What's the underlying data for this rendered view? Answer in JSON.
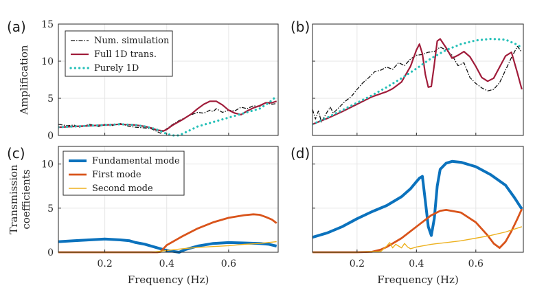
{
  "chart_data": [
    {
      "panel_label": "(a)",
      "type": "line",
      "ylabel": "Amplification",
      "xlabel": "",
      "xlim": [
        0.05,
        0.76
      ],
      "ylim": [
        0,
        15
      ],
      "xticks": [
        0.2,
        0.4,
        0.6
      ],
      "xticklabels": [],
      "yticks": [
        0,
        5,
        10,
        15
      ],
      "yticklabels": [
        "0",
        "5",
        "10",
        "15"
      ],
      "grid": true,
      "legend_position": "top-left",
      "series": [
        {
          "name": "Num. simulation",
          "color": "#111111",
          "style": "dashdot",
          "width": 1.3,
          "x": [
            0.05,
            0.08,
            0.1,
            0.12,
            0.15,
            0.18,
            0.2,
            0.22,
            0.25,
            0.28,
            0.3,
            0.33,
            0.35,
            0.37,
            0.38,
            0.39,
            0.4,
            0.42,
            0.44,
            0.46,
            0.48,
            0.5,
            0.52,
            0.54,
            0.55,
            0.56,
            0.58,
            0.6,
            0.62,
            0.64,
            0.66,
            0.68,
            0.7,
            0.72,
            0.74,
            0.755
          ],
          "y": [
            1.5,
            1.3,
            1.4,
            1.1,
            1.5,
            1.2,
            1.5,
            1.3,
            1.6,
            1.2,
            1.1,
            1.0,
            0.9,
            0.5,
            0.3,
            0.6,
            0.9,
            1.5,
            2.0,
            2.4,
            2.8,
            3.1,
            3.0,
            3.4,
            3.2,
            3.6,
            3.1,
            3.4,
            3.3,
            3.8,
            3.6,
            4.0,
            3.9,
            4.4,
            4.2,
            4.3
          ]
        },
        {
          "name": "Full 1D trans.",
          "color": "#a01c3a",
          "style": "solid",
          "width": 2.2,
          "x": [
            0.05,
            0.1,
            0.15,
            0.2,
            0.25,
            0.3,
            0.33,
            0.35,
            0.37,
            0.39,
            0.4,
            0.42,
            0.45,
            0.48,
            0.5,
            0.52,
            0.54,
            0.56,
            0.58,
            0.6,
            0.62,
            0.64,
            0.66,
            0.68,
            0.7,
            0.72,
            0.74,
            0.755
          ],
          "y": [
            1.1,
            1.2,
            1.3,
            1.4,
            1.5,
            1.4,
            1.2,
            1.0,
            0.7,
            0.6,
            0.8,
            1.4,
            2.1,
            2.9,
            3.6,
            4.2,
            4.6,
            4.6,
            4.1,
            3.4,
            3.0,
            2.8,
            3.3,
            3.7,
            4.0,
            4.4,
            4.4,
            4.6
          ]
        },
        {
          "name": "Purely 1D",
          "color": "#26c0b8",
          "style": "dotted",
          "width": 3.2,
          "x": [
            0.05,
            0.1,
            0.15,
            0.2,
            0.25,
            0.3,
            0.33,
            0.36,
            0.38,
            0.4,
            0.42,
            0.44,
            0.46,
            0.48,
            0.5,
            0.55,
            0.6,
            0.65,
            0.7,
            0.73,
            0.755
          ],
          "y": [
            1.1,
            1.2,
            1.3,
            1.4,
            1.5,
            1.4,
            1.2,
            0.9,
            0.6,
            0.2,
            0.0,
            0.0,
            0.4,
            0.8,
            1.2,
            1.8,
            2.4,
            3.0,
            3.6,
            4.4,
            5.3
          ]
        }
      ]
    },
    {
      "panel_label": "(b)",
      "type": "line",
      "ylabel": "",
      "xlabel": "",
      "xlim": [
        0.05,
        0.76
      ],
      "ylim": [
        0,
        15
      ],
      "xticks": [
        0.2,
        0.4,
        0.6
      ],
      "xticklabels": [],
      "yticks": [
        0,
        5,
        10,
        15
      ],
      "yticklabels": [],
      "grid": true,
      "series": [
        {
          "name": "Num. simulation",
          "color": "#111111",
          "style": "dashdot",
          "width": 1.3,
          "x": [
            0.05,
            0.06,
            0.07,
            0.08,
            0.09,
            0.1,
            0.11,
            0.12,
            0.14,
            0.16,
            0.18,
            0.2,
            0.22,
            0.24,
            0.26,
            0.28,
            0.3,
            0.32,
            0.34,
            0.36,
            0.38,
            0.4,
            0.42,
            0.44,
            0.46,
            0.48,
            0.5,
            0.52,
            0.54,
            0.56,
            0.58,
            0.6,
            0.62,
            0.64,
            0.66,
            0.68,
            0.7,
            0.72,
            0.74,
            0.755
          ],
          "y": [
            3.5,
            2.2,
            3.3,
            1.8,
            2.5,
            3.2,
            3.8,
            3.0,
            3.8,
            4.6,
            5.2,
            6.2,
            7.1,
            7.8,
            8.6,
            8.8,
            9.2,
            8.9,
            9.8,
            9.4,
            10.3,
            10.8,
            10.9,
            11.2,
            11.3,
            11.9,
            11.5,
            10.8,
            9.4,
            9.8,
            7.8,
            7.0,
            6.4,
            6.0,
            6.2,
            7.1,
            8.8,
            10.5,
            12.0,
            11.2
          ]
        },
        {
          "name": "Full 1D trans.",
          "color": "#a01c3a",
          "style": "solid",
          "width": 2.2,
          "x": [
            0.05,
            0.1,
            0.15,
            0.2,
            0.25,
            0.3,
            0.32,
            0.35,
            0.38,
            0.4,
            0.41,
            0.42,
            0.43,
            0.44,
            0.45,
            0.46,
            0.47,
            0.48,
            0.5,
            0.52,
            0.54,
            0.56,
            0.58,
            0.6,
            0.62,
            0.64,
            0.66,
            0.68,
            0.7,
            0.72,
            0.74,
            0.755
          ],
          "y": [
            1.5,
            2.3,
            3.2,
            4.2,
            5.2,
            5.9,
            6.3,
            7.2,
            9.3,
            11.5,
            12.3,
            11.0,
            8.2,
            6.5,
            6.6,
            9.5,
            12.7,
            13.0,
            11.8,
            10.4,
            10.8,
            11.3,
            10.6,
            9.3,
            7.8,
            7.3,
            7.7,
            9.2,
            10.7,
            11.2,
            8.4,
            6.2
          ]
        },
        {
          "name": "Purely 1D",
          "color": "#26c0b8",
          "style": "dotted",
          "width": 3.2,
          "x": [
            0.05,
            0.1,
            0.15,
            0.2,
            0.25,
            0.3,
            0.35,
            0.4,
            0.45,
            0.5,
            0.55,
            0.6,
            0.65,
            0.7,
            0.74,
            0.755
          ],
          "y": [
            1.5,
            2.4,
            3.4,
            4.4,
            5.4,
            6.5,
            7.7,
            9.0,
            10.4,
            11.5,
            12.3,
            12.8,
            13.0,
            12.9,
            12.2,
            11.8
          ]
        }
      ]
    },
    {
      "panel_label": "(c)",
      "type": "line",
      "ylabel": "Transmission coefficients",
      "ylabel_lines": [
        "Transmission",
        "coefficients"
      ],
      "xlabel": "Frequency (Hz)",
      "xlim": [
        0.05,
        0.76
      ],
      "ylim": [
        0,
        12
      ],
      "xticks": [
        0.2,
        0.4,
        0.6
      ],
      "xticklabels": [
        "0.2",
        "0.4",
        "0.6"
      ],
      "yticks": [
        0,
        5,
        10
      ],
      "yticklabels": [
        "0",
        "5",
        "10"
      ],
      "grid": true,
      "legend_position": "top-left",
      "series": [
        {
          "name": "Fundamental mode",
          "color": "#0b72bd",
          "style": "solid",
          "width": 4,
          "x": [
            0.05,
            0.1,
            0.15,
            0.2,
            0.25,
            0.28,
            0.3,
            0.33,
            0.36,
            0.38,
            0.4,
            0.42,
            0.44,
            0.46,
            0.5,
            0.55,
            0.6,
            0.65,
            0.7,
            0.73,
            0.755
          ],
          "y": [
            1.2,
            1.3,
            1.4,
            1.5,
            1.4,
            1.3,
            1.1,
            0.9,
            0.6,
            0.4,
            0.2,
            0.1,
            0.0,
            0.3,
            0.7,
            1.0,
            1.1,
            1.05,
            1.0,
            0.9,
            0.7
          ]
        },
        {
          "name": "First mode",
          "color": "#d9541b",
          "style": "solid",
          "width": 2.8,
          "x": [
            0.05,
            0.1,
            0.2,
            0.3,
            0.37,
            0.38,
            0.4,
            0.45,
            0.5,
            0.55,
            0.6,
            0.65,
            0.68,
            0.7,
            0.72,
            0.74,
            0.755
          ],
          "y": [
            0,
            0,
            0,
            0,
            0,
            0.05,
            0.8,
            1.8,
            2.7,
            3.4,
            3.9,
            4.2,
            4.3,
            4.25,
            4.0,
            3.7,
            3.3
          ]
        },
        {
          "name": "Second mode",
          "color": "#edb11f",
          "style": "solid",
          "width": 1.4,
          "x": [
            0.05,
            0.2,
            0.35,
            0.4,
            0.45,
            0.5,
            0.55,
            0.6,
            0.65,
            0.7,
            0.755
          ],
          "y": [
            0,
            0,
            0,
            0.2,
            0.4,
            0.55,
            0.65,
            0.75,
            0.9,
            1.0,
            1.2
          ]
        }
      ]
    },
    {
      "panel_label": "(d)",
      "type": "line",
      "ylabel": "",
      "xlabel": "Frequency (Hz)",
      "xlim": [
        0.05,
        0.76
      ],
      "ylim": [
        0,
        12
      ],
      "xticks": [
        0.2,
        0.4,
        0.6
      ],
      "xticklabels": [
        "0.2",
        "0.4",
        "0.6"
      ],
      "yticks": [
        0,
        5,
        10
      ],
      "yticklabels": [],
      "grid": true,
      "series": [
        {
          "name": "Fundamental mode",
          "color": "#0b72bd",
          "style": "solid",
          "width": 4,
          "x": [
            0.05,
            0.1,
            0.15,
            0.2,
            0.25,
            0.3,
            0.35,
            0.38,
            0.4,
            0.41,
            0.42,
            0.43,
            0.44,
            0.45,
            0.46,
            0.47,
            0.48,
            0.5,
            0.52,
            0.55,
            0.6,
            0.65,
            0.7,
            0.73,
            0.755
          ],
          "y": [
            1.7,
            2.2,
            2.9,
            3.8,
            4.6,
            5.3,
            6.3,
            7.2,
            8.0,
            8.4,
            8.6,
            5.8,
            2.9,
            1.9,
            3.8,
            7.5,
            9.4,
            10.1,
            10.3,
            10.2,
            9.7,
            8.8,
            7.6,
            6.2,
            4.9
          ]
        },
        {
          "name": "First mode",
          "color": "#d9541b",
          "style": "solid",
          "width": 2.8,
          "x": [
            0.05,
            0.1,
            0.2,
            0.25,
            0.28,
            0.3,
            0.35,
            0.4,
            0.45,
            0.48,
            0.5,
            0.55,
            0.6,
            0.64,
            0.66,
            0.68,
            0.7,
            0.72,
            0.74,
            0.755
          ],
          "y": [
            0,
            0,
            0,
            0.05,
            0.3,
            0.6,
            1.6,
            2.9,
            4.2,
            4.7,
            4.8,
            4.5,
            3.4,
            1.9,
            1.0,
            0.5,
            1.2,
            2.4,
            3.8,
            4.9
          ]
        },
        {
          "name": "Second mode",
          "color": "#edb11f",
          "style": "solid",
          "width": 1.4,
          "x": [
            0.05,
            0.2,
            0.28,
            0.3,
            0.31,
            0.32,
            0.33,
            0.34,
            0.35,
            0.36,
            0.37,
            0.38,
            0.4,
            0.45,
            0.5,
            0.55,
            0.6,
            0.65,
            0.7,
            0.755
          ],
          "y": [
            0,
            0,
            0.1,
            0.7,
            1.1,
            0.5,
            0.9,
            0.7,
            0.5,
            1.0,
            0.6,
            0.4,
            0.6,
            0.9,
            1.1,
            1.3,
            1.6,
            1.9,
            2.3,
            2.9
          ]
        }
      ]
    }
  ]
}
